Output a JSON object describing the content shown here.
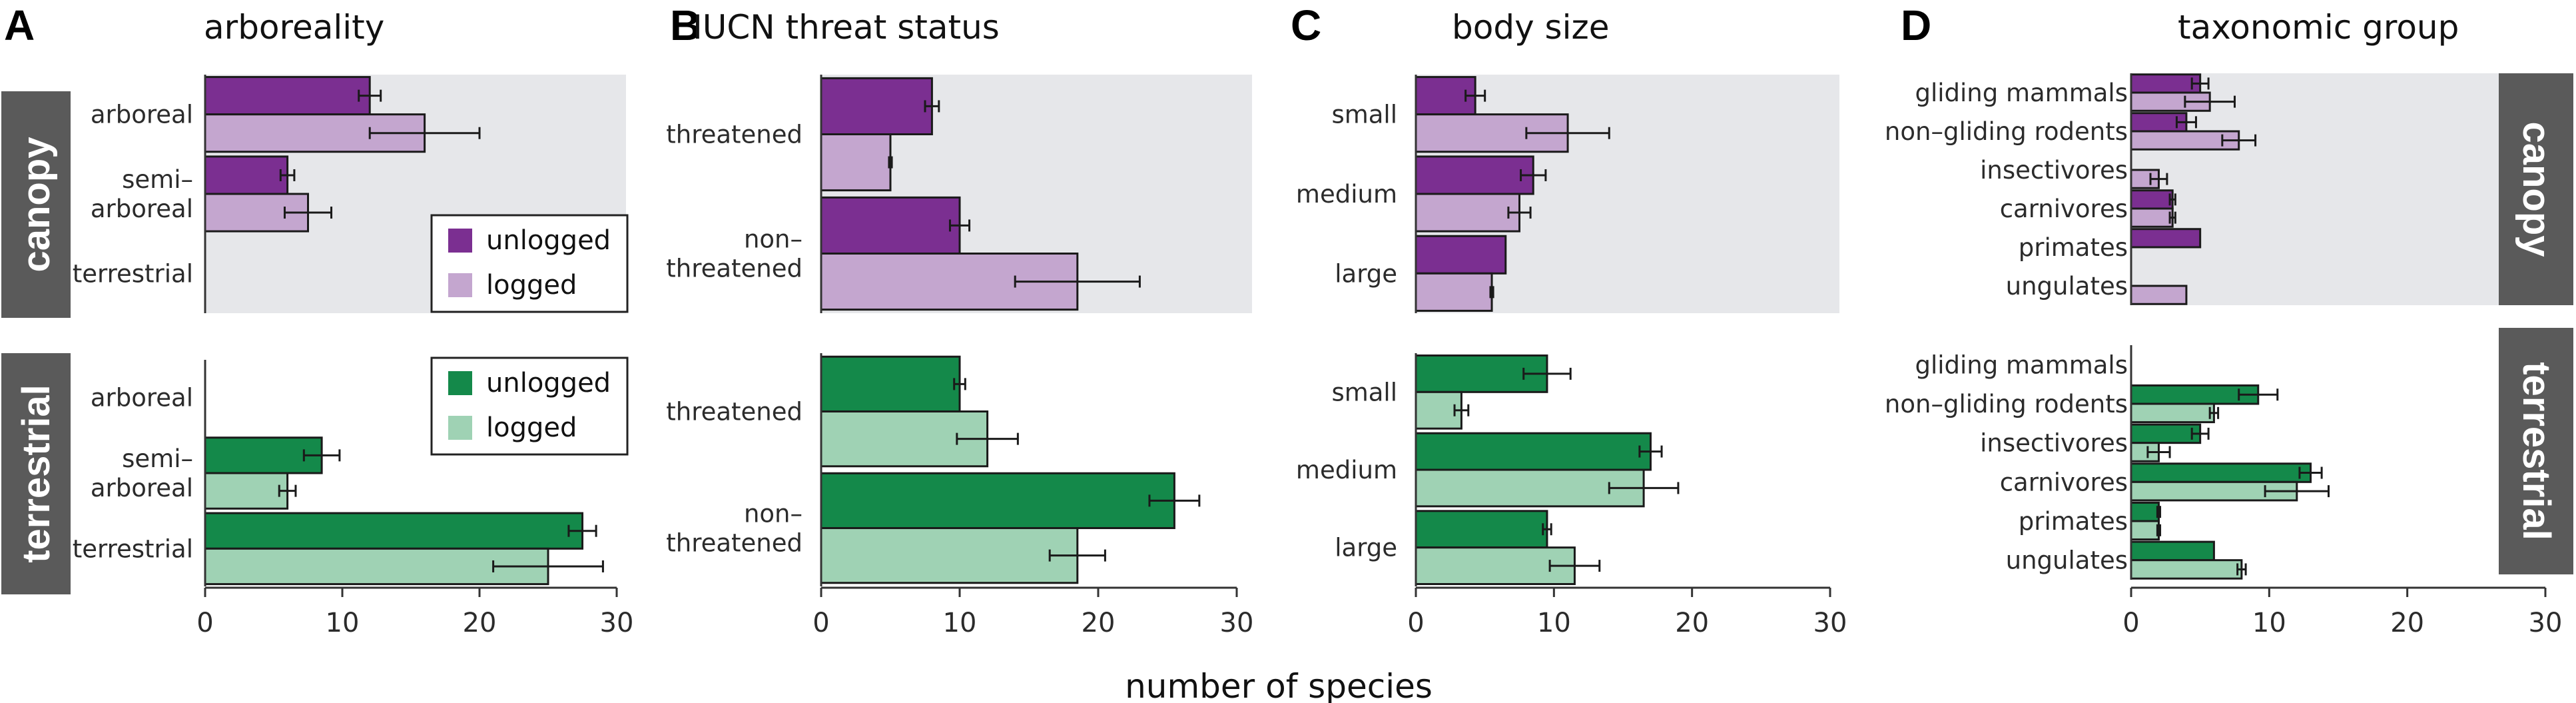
{
  "colors": {
    "canopy_unlogged": "#7b2f91",
    "canopy_logged": "#c4a6cf",
    "terrestrial_unlogged": "#14894a",
    "terrestrial_logged": "#9fd2b4",
    "tab_bg": "#5a5a5a",
    "shade": "#e6e7ea"
  },
  "figure": {
    "xlabel": "number of species"
  },
  "strata": {
    "canopy": "canopy",
    "terrestrial": "terrestrial"
  },
  "legend": {
    "unlogged": "unlogged",
    "logged": "logged"
  },
  "chart_data": [
    {
      "panel": "A",
      "title": "arboreality",
      "type": "bar",
      "orientation": "horizontal",
      "xlim": [
        0,
        30
      ],
      "xticks": [
        0,
        10,
        20,
        30
      ],
      "categories": [
        [
          "arboreal"
        ],
        [
          "semi–",
          "arboreal"
        ],
        [
          "terrestrial"
        ]
      ],
      "canopy": {
        "unlogged": {
          "values": [
            12,
            6,
            0
          ],
          "errors": [
            0.8,
            0.5,
            0
          ]
        },
        "logged": {
          "values": [
            16,
            7.5,
            0
          ],
          "errors": [
            4,
            1.7,
            0
          ]
        }
      },
      "terrestrial": {
        "unlogged": {
          "values": [
            0,
            8.5,
            27.5
          ],
          "errors": [
            0,
            1.3,
            1.0
          ]
        },
        "logged": {
          "values": [
            0,
            6,
            25
          ],
          "errors": [
            0,
            0.6,
            4
          ]
        }
      }
    },
    {
      "panel": "B",
      "title": "IUCN threat status",
      "type": "bar",
      "orientation": "horizontal",
      "xlim": [
        0,
        30
      ],
      "xticks": [
        0,
        10,
        20,
        30
      ],
      "categories": [
        [
          "threatened"
        ],
        [
          "non–",
          "threatened"
        ]
      ],
      "canopy": {
        "unlogged": {
          "values": [
            8,
            10
          ],
          "errors": [
            0.5,
            0.7
          ]
        },
        "logged": {
          "values": [
            5,
            18.5
          ],
          "errors": [
            0.1,
            4.5
          ]
        }
      },
      "terrestrial": {
        "unlogged": {
          "values": [
            10,
            25.5
          ],
          "errors": [
            0.4,
            1.8
          ]
        },
        "logged": {
          "values": [
            12,
            18.5
          ],
          "errors": [
            2.2,
            2.0
          ]
        }
      }
    },
    {
      "panel": "C",
      "title": "body size",
      "type": "bar",
      "orientation": "horizontal",
      "xlim": [
        0,
        30
      ],
      "xticks": [
        0,
        10,
        20,
        30
      ],
      "categories": [
        [
          "small"
        ],
        [
          "medium"
        ],
        [
          "large"
        ]
      ],
      "canopy": {
        "unlogged": {
          "values": [
            4.3,
            8.5,
            6.5
          ],
          "errors": [
            0.7,
            0.9,
            0
          ]
        },
        "logged": {
          "values": [
            11,
            7.5,
            5.5
          ],
          "errors": [
            3,
            0.8,
            0.1
          ]
        }
      },
      "terrestrial": {
        "unlogged": {
          "values": [
            9.5,
            17,
            9.5
          ],
          "errors": [
            1.7,
            0.8,
            0.3
          ]
        },
        "logged": {
          "values": [
            3.3,
            16.5,
            11.5
          ],
          "errors": [
            0.5,
            2.5,
            1.8
          ]
        }
      }
    },
    {
      "panel": "D",
      "title": "taxonomic group",
      "type": "bar",
      "orientation": "horizontal",
      "xlim": [
        0,
        30
      ],
      "xticks": [
        0,
        10,
        20,
        30
      ],
      "categories": [
        [
          "gliding mammals"
        ],
        [
          "non–gliding rodents"
        ],
        [
          "insectivores"
        ],
        [
          "carnivores"
        ],
        [
          "primates"
        ],
        [
          "ungulates"
        ]
      ],
      "canopy": {
        "unlogged": {
          "values": [
            5,
            4,
            0,
            3,
            5,
            0
          ],
          "errors": [
            0.6,
            0.7,
            0,
            0.2,
            0,
            0
          ]
        },
        "logged": {
          "values": [
            5.7,
            7.8,
            2,
            3,
            0,
            4
          ],
          "errors": [
            1.8,
            1.2,
            0.6,
            0.2,
            0,
            0
          ]
        }
      },
      "terrestrial": {
        "unlogged": {
          "values": [
            0,
            9.2,
            5,
            13,
            2,
            6
          ],
          "errors": [
            0,
            1.4,
            0.6,
            0.8,
            0.1,
            0
          ]
        },
        "logged": {
          "values": [
            0,
            6,
            2,
            12,
            2,
            8
          ],
          "errors": [
            0,
            0.3,
            0.8,
            2.3,
            0.1,
            0.3
          ]
        }
      }
    }
  ]
}
